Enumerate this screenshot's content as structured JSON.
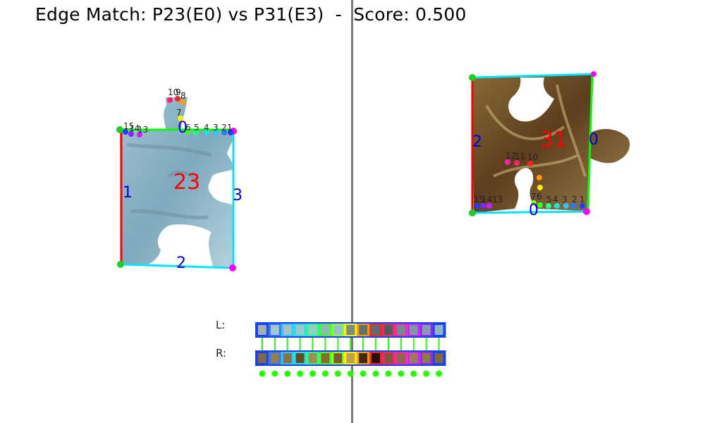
{
  "title": "Edge Match: P23(E0) vs P31(E3)  -  Score: 0.500",
  "left_piece": {
    "id_label": "23",
    "edge_labels": [
      "0",
      "1",
      "2",
      "3"
    ],
    "point_labels": [
      "15",
      "14",
      "13",
      "10",
      "9",
      "8",
      "7",
      "6",
      "5",
      "4",
      "3",
      "2",
      "1"
    ]
  },
  "right_piece": {
    "id_label": "31",
    "edge_labels": [
      "0",
      "2"
    ],
    "point_labels": [
      "12",
      "11",
      "10",
      "15",
      "14",
      "13",
      "7",
      "6",
      "5",
      "4",
      "3",
      "2",
      "1"
    ]
  },
  "strips": {
    "left_label": "L:",
    "right_label": "R:",
    "left_colors": [
      "#9fb1a8",
      "#a7c6d2",
      "#aebfbf",
      "#a6c5cc",
      "#9cc9c4",
      "#8fb9b5",
      "#98c1cf",
      "#7d8a7f",
      "#5b7474",
      "#56706d",
      "#4a5e5a",
      "#6f8d90",
      "#7c9aa1",
      "#839fa8",
      "#8fb6c4"
    ],
    "right_colors": [
      "#7e6a3e",
      "#9a7c4c",
      "#8e7040",
      "#6b4a22",
      "#a68a4f",
      "#8b6a32",
      "#7a5a30",
      "#c2a04e",
      "#3e2a18",
      "#1e140c",
      "#7a5a3a",
      "#8a6848",
      "#9a7c50",
      "#8e7a3a",
      "#7e6830"
    ],
    "left_border_colors": [
      "#1a40ff",
      "#2a7aff",
      "#25c8ff",
      "#22e0e0",
      "#22ff88",
      "#44ff22",
      "#88ff22",
      "#ffee00",
      "#ff9900",
      "#ff2222",
      "#ff2266",
      "#ff22aa",
      "#cc22ff",
      "#9922ff",
      "#1a40ff"
    ],
    "connector_color": "#22ff00",
    "dot_color": "#22ff00"
  },
  "colors": {
    "edge_red": "#ff0000",
    "edge_green": "#00ff00",
    "edge_cyan": "#00e5ff",
    "edge_blue": "#0000ff",
    "piece_label_red": "#ff0000",
    "edge_label_blue": "#0000dd"
  }
}
